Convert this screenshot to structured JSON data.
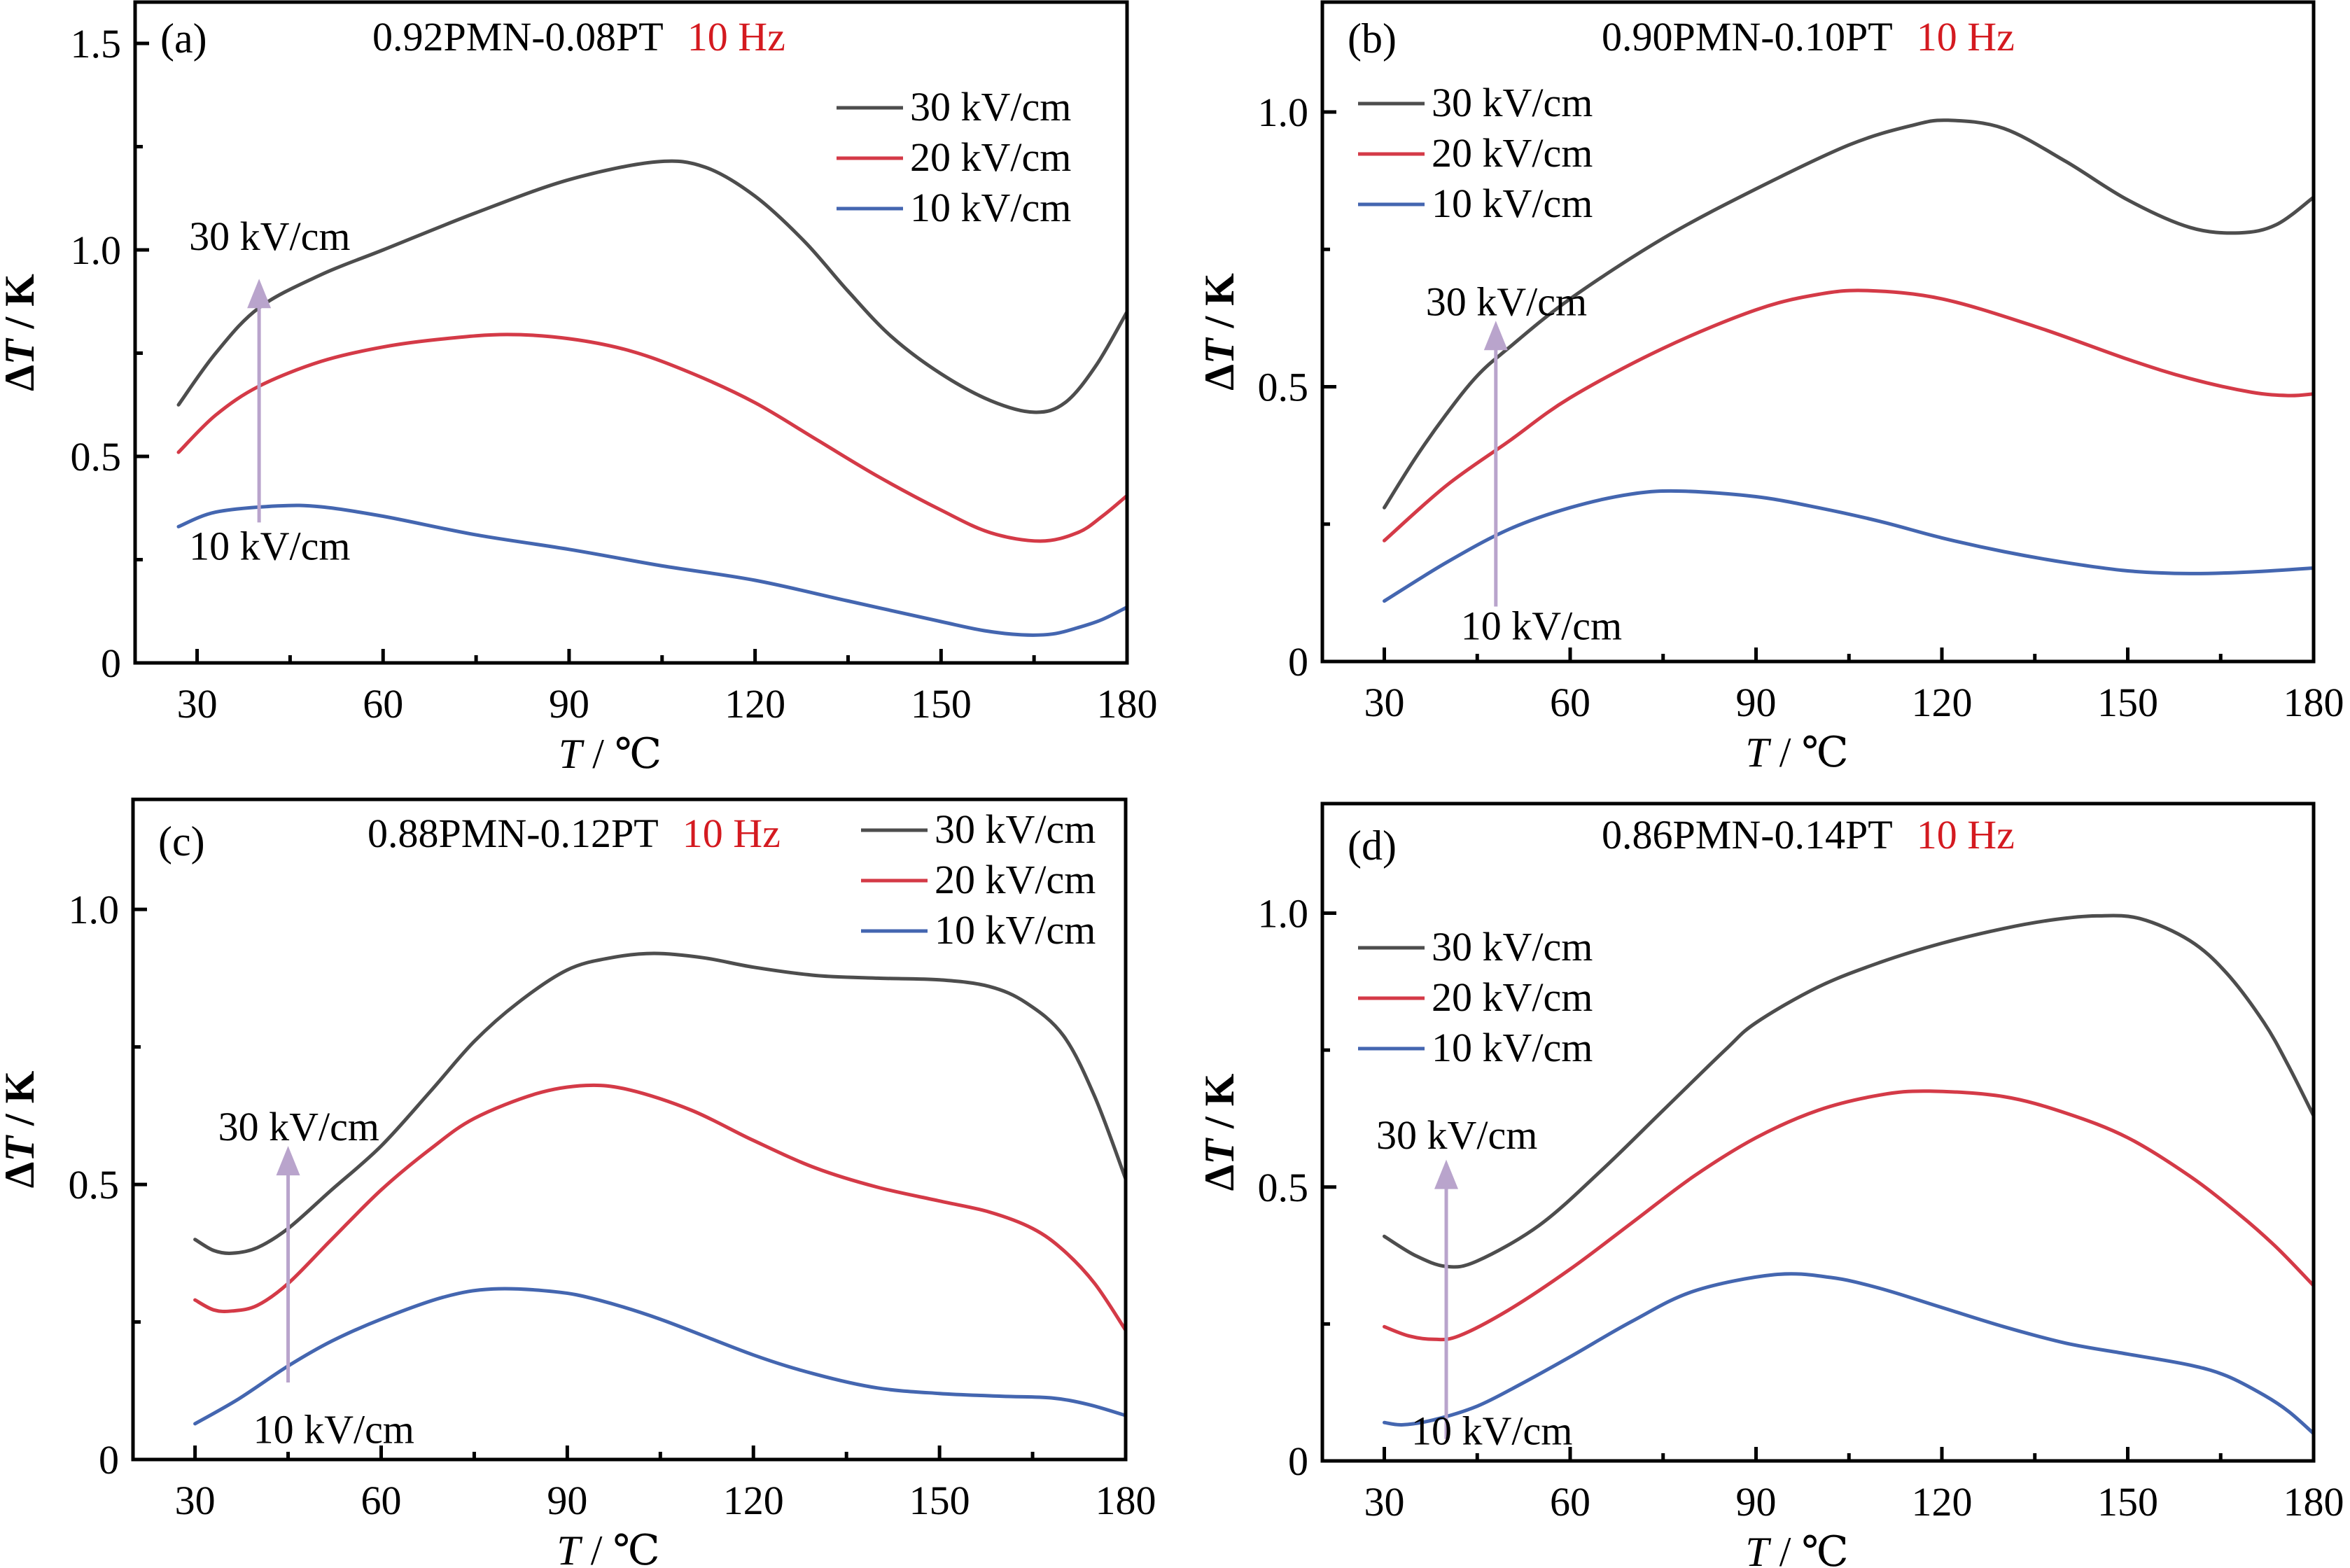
{
  "chart_data": [
    {
      "type": "line",
      "panel_label": "(a)",
      "title": "0.92PMN-0.08PT",
      "title_suffix": "10 Hz",
      "title_suffix_color": "#d41a20",
      "xlabel_italic": "T",
      "xlabel_unit": " / ℃",
      "ylabel_prefix": "Δ",
      "ylabel_italic": "T",
      "ylabel_unit": " / K",
      "xlim": [
        20,
        180
      ],
      "ylim": [
        0,
        1.6
      ],
      "xticks": [
        30,
        60,
        90,
        120,
        150,
        180
      ],
      "xtick_labels": [
        "30",
        "60",
        "90",
        "120",
        "150",
        "180"
      ],
      "x_minor_ticks": [
        45,
        75,
        105,
        135,
        165
      ],
      "yticks": [
        0,
        0.5,
        1.0,
        1.5
      ],
      "ytick_labels": [
        "0",
        "0.5",
        "1.0",
        "1.5"
      ],
      "y_minor_ticks": [
        0.25,
        0.75,
        1.25
      ],
      "legend": {
        "position": "top-right",
        "entries": [
          "30 kV/cm",
          "20 kV/cm",
          "10 kV/cm"
        ]
      },
      "annotations": {
        "top": "30 kV/cm",
        "bottom": "10 kV/cm",
        "arrow_x": 40,
        "arrow_from": 0.34,
        "arrow_to": 0.93,
        "arrow_color": "#b9a4cc",
        "top_label_y": 1.0,
        "bottom_label_y": 0.25
      },
      "series": [
        {
          "name": "30 kV/cm",
          "color": "#4d4d4d",
          "x": [
            27,
            33,
            40,
            50,
            60,
            75,
            90,
            104,
            112,
            120,
            128,
            135,
            142,
            150,
            158,
            165,
            170,
            175,
            180
          ],
          "y": [
            0.625,
            0.75,
            0.86,
            0.94,
            1.0,
            1.09,
            1.17,
            1.213,
            1.2,
            1.13,
            1.02,
            0.9,
            0.79,
            0.7,
            0.635,
            0.607,
            0.63,
            0.72,
            0.85
          ]
        },
        {
          "name": "20 kV/cm",
          "color": "#d43a47",
          "x": [
            27,
            33,
            40,
            50,
            60,
            70,
            80,
            90,
            100,
            110,
            120,
            130,
            140,
            150,
            158,
            166,
            172,
            176,
            180
          ],
          "y": [
            0.51,
            0.6,
            0.67,
            0.73,
            0.765,
            0.785,
            0.795,
            0.785,
            0.755,
            0.7,
            0.63,
            0.54,
            0.45,
            0.37,
            0.315,
            0.295,
            0.315,
            0.355,
            0.405
          ]
        },
        {
          "name": "10 kV/cm",
          "color": "#4466b0",
          "x": [
            27,
            33,
            43,
            50,
            60,
            75,
            90,
            105,
            120,
            135,
            150,
            157,
            163,
            168,
            172,
            176,
            180
          ],
          "y": [
            0.33,
            0.365,
            0.38,
            0.378,
            0.355,
            0.31,
            0.275,
            0.235,
            0.2,
            0.15,
            0.1,
            0.078,
            0.068,
            0.07,
            0.085,
            0.105,
            0.135
          ]
        }
      ]
    },
    {
      "type": "line",
      "panel_label": "(b)",
      "title": "0.90PMN-0.10PT",
      "title_suffix": "10 Hz",
      "title_suffix_color": "#d41a20",
      "xlabel_italic": "T",
      "xlabel_unit": " / ℃",
      "ylabel_prefix": "Δ",
      "ylabel_italic": "T",
      "ylabel_unit": " / K",
      "xlim": [
        20,
        180
      ],
      "ylim": [
        0,
        1.2
      ],
      "xticks": [
        30,
        60,
        90,
        120,
        150,
        180
      ],
      "xtick_labels": [
        "30",
        "60",
        "90",
        "120",
        "150",
        "180"
      ],
      "x_minor_ticks": [
        45,
        75,
        105,
        135,
        165
      ],
      "yticks": [
        0,
        0.5,
        1.0
      ],
      "ytick_labels": [
        "0",
        "0.5",
        "1.0"
      ],
      "y_minor_ticks": [
        0.25,
        0.75
      ],
      "legend": {
        "position": "top-left",
        "entries": [
          "30 kV/cm",
          "20 kV/cm",
          "10 kV/cm"
        ]
      },
      "annotations": {
        "top": "30 kV/cm",
        "bottom": "10 kV/cm",
        "arrow_x": 48,
        "arrow_from": 0.1,
        "arrow_to": 0.62,
        "arrow_color": "#b9a4cc",
        "top_label_y": 0.63,
        "bottom_label_y": 0.04
      },
      "series": [
        {
          "name": "30 kV/cm",
          "color": "#4d4d4d",
          "x": [
            30,
            35,
            40,
            45,
            50,
            60,
            75,
            90,
            105,
            115,
            121,
            130,
            140,
            150,
            160,
            168,
            174,
            180
          ],
          "y": [
            0.28,
            0.37,
            0.45,
            0.52,
            0.57,
            0.66,
            0.77,
            0.86,
            0.94,
            0.975,
            0.985,
            0.97,
            0.91,
            0.84,
            0.79,
            0.78,
            0.795,
            0.845
          ]
        },
        {
          "name": "20 kV/cm",
          "color": "#d43a47",
          "x": [
            30,
            40,
            50,
            60,
            75,
            90,
            100,
            108,
            120,
            135,
            150,
            160,
            170,
            176,
            180
          ],
          "y": [
            0.22,
            0.32,
            0.4,
            0.48,
            0.57,
            0.64,
            0.668,
            0.675,
            0.66,
            0.61,
            0.55,
            0.515,
            0.49,
            0.484,
            0.487
          ]
        },
        {
          "name": "10 kV/cm",
          "color": "#4466b0",
          "x": [
            30,
            40,
            50,
            60,
            70,
            78,
            90,
            100,
            110,
            120,
            130,
            140,
            150,
            160,
            170,
            180
          ],
          "y": [
            0.11,
            0.18,
            0.24,
            0.28,
            0.305,
            0.31,
            0.3,
            0.28,
            0.255,
            0.225,
            0.2,
            0.18,
            0.165,
            0.16,
            0.163,
            0.17
          ]
        }
      ]
    },
    {
      "type": "line",
      "panel_label": "(c)",
      "title": "0.88PMN-0.12PT",
      "title_suffix": "10 Hz",
      "title_suffix_color": "#d41a20",
      "xlabel_italic": "T",
      "xlabel_unit": " / ℃",
      "ylabel_prefix": "Δ",
      "ylabel_italic": "T",
      "ylabel_unit": " / K",
      "xlim": [
        20,
        180
      ],
      "ylim": [
        0,
        1.2
      ],
      "xticks": [
        30,
        60,
        90,
        120,
        150,
        180
      ],
      "xtick_labels": [
        "30",
        "60",
        "90",
        "120",
        "150",
        "180"
      ],
      "x_minor_ticks": [
        45,
        75,
        105,
        135,
        165
      ],
      "yticks": [
        0,
        0.5,
        1.0
      ],
      "ytick_labels": [
        "0",
        "0.5",
        "1.0"
      ],
      "y_minor_ticks": [
        0.25,
        0.75
      ],
      "legend": {
        "position": "top-right",
        "entries": [
          "30 kV/cm",
          "20 kV/cm",
          "10 kV/cm"
        ]
      },
      "annotations": {
        "top": "30 kV/cm",
        "bottom": "10 kV/cm",
        "arrow_x": 45,
        "arrow_from": 0.14,
        "arrow_to": 0.57,
        "arrow_color": "#b9a4cc",
        "top_label_y": 0.58,
        "bottom_label_y": 0.03
      },
      "series": [
        {
          "name": "30 kV/cm",
          "color": "#4d4d4d",
          "x": [
            30,
            33,
            36,
            40,
            45,
            52,
            60,
            68,
            75,
            82,
            90,
            97,
            104,
            112,
            120,
            130,
            140,
            150,
            158,
            164,
            170,
            175,
            180
          ],
          "y": [
            0.4,
            0.38,
            0.375,
            0.385,
            0.42,
            0.49,
            0.57,
            0.67,
            0.76,
            0.83,
            0.89,
            0.912,
            0.92,
            0.912,
            0.895,
            0.88,
            0.875,
            0.872,
            0.86,
            0.83,
            0.77,
            0.66,
            0.51
          ]
        },
        {
          "name": "20 kV/cm",
          "color": "#d43a47",
          "x": [
            30,
            33,
            36,
            40,
            45,
            52,
            60,
            68,
            75,
            85,
            93,
            100,
            110,
            120,
            130,
            140,
            150,
            158,
            165,
            170,
            175,
            180
          ],
          "y": [
            0.29,
            0.272,
            0.27,
            0.28,
            0.32,
            0.4,
            0.49,
            0.565,
            0.62,
            0.665,
            0.68,
            0.672,
            0.635,
            0.58,
            0.53,
            0.495,
            0.47,
            0.45,
            0.42,
            0.38,
            0.32,
            0.235
          ]
        },
        {
          "name": "10 kV/cm",
          "color": "#4466b0",
          "x": [
            30,
            37,
            45,
            52,
            60,
            70,
            78,
            88,
            95,
            105,
            120,
            130,
            140,
            150,
            160,
            168,
            174,
            180
          ],
          "y": [
            0.065,
            0.11,
            0.17,
            0.215,
            0.255,
            0.295,
            0.31,
            0.305,
            0.29,
            0.255,
            0.19,
            0.155,
            0.13,
            0.12,
            0.115,
            0.112,
            0.1,
            0.08
          ]
        }
      ]
    },
    {
      "type": "line",
      "panel_label": "(d)",
      "title": "0.86PMN-0.14PT",
      "title_suffix": "10 Hz",
      "title_suffix_color": "#d41a20",
      "xlabel_italic": "T",
      "xlabel_unit": " / ℃",
      "ylabel_prefix": "Δ",
      "ylabel_italic": "T",
      "ylabel_unit": " / K",
      "xlim": [
        20,
        180
      ],
      "ylim": [
        0,
        1.2
      ],
      "xticks": [
        30,
        60,
        90,
        120,
        150,
        180
      ],
      "xtick_labels": [
        "30",
        "60",
        "90",
        "120",
        "150",
        "180"
      ],
      "x_minor_ticks": [
        45,
        75,
        105,
        135,
        165
      ],
      "yticks": [
        0,
        0.5,
        1.0
      ],
      "ytick_labels": [
        "0",
        "0.5",
        "1.0"
      ],
      "y_minor_ticks": [
        0.25,
        0.75
      ],
      "legend": {
        "position": "top-left",
        "entries": [
          "30 kV/cm",
          "20 kV/cm",
          "10 kV/cm"
        ]
      },
      "annotations": {
        "top": "30 kV/cm",
        "bottom": "10 kV/cm",
        "arrow_x": 40,
        "arrow_from": 0.04,
        "arrow_to": 0.55,
        "arrow_color": "#b9a4cc",
        "top_label_y": 0.57,
        "bottom_label_y": 0.03
      },
      "series": [
        {
          "name": "30 kV/cm",
          "color": "#4d4d4d",
          "x": [
            30,
            35,
            40,
            45,
            55,
            65,
            75,
            85,
            90,
            100,
            110,
            120,
            130,
            138,
            145,
            152,
            160,
            166,
            172,
            176,
            180
          ],
          "y": [
            0.41,
            0.375,
            0.355,
            0.365,
            0.43,
            0.53,
            0.64,
            0.75,
            0.8,
            0.865,
            0.91,
            0.945,
            0.972,
            0.988,
            0.995,
            0.99,
            0.95,
            0.89,
            0.8,
            0.72,
            0.63
          ]
        },
        {
          "name": "20 kV/cm",
          "color": "#d43a47",
          "x": [
            30,
            34,
            38,
            42,
            50,
            60,
            70,
            80,
            90,
            100,
            110,
            118,
            130,
            140,
            150,
            160,
            168,
            174,
            180
          ],
          "y": [
            0.245,
            0.228,
            0.222,
            0.228,
            0.275,
            0.35,
            0.435,
            0.52,
            0.59,
            0.64,
            0.668,
            0.675,
            0.665,
            0.635,
            0.59,
            0.52,
            0.45,
            0.39,
            0.32
          ]
        },
        {
          "name": "10 kV/cm",
          "color": "#4466b0",
          "x": [
            30,
            33,
            38,
            45,
            52,
            60,
            70,
            80,
            93,
            102,
            110,
            120,
            130,
            140,
            150,
            160,
            166,
            172,
            176,
            180
          ],
          "y": [
            0.07,
            0.066,
            0.075,
            0.1,
            0.14,
            0.19,
            0.255,
            0.31,
            0.34,
            0.335,
            0.315,
            0.28,
            0.245,
            0.215,
            0.195,
            0.175,
            0.155,
            0.12,
            0.09,
            0.05
          ]
        }
      ]
    }
  ]
}
